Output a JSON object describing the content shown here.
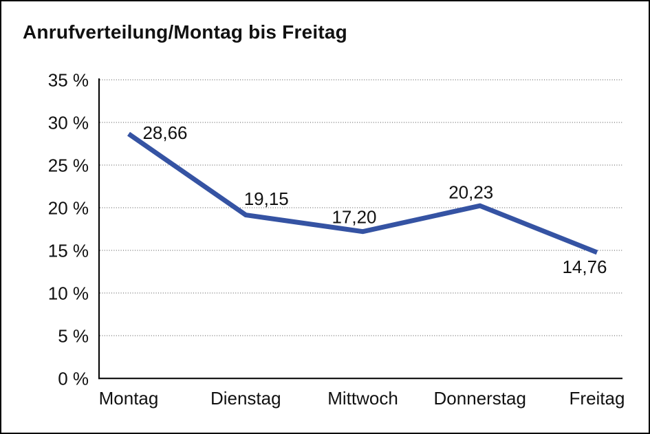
{
  "page": {
    "background_color": "#ffffff",
    "border_color": "#000000"
  },
  "chart_data": {
    "type": "line",
    "title": "Anrufverteilung/Montag bis Freitag",
    "categories": [
      "Montag",
      "Dienstag",
      "Mittwoch",
      "Donnerstag",
      "Freitag"
    ],
    "values": [
      28.66,
      19.15,
      17.2,
      20.23,
      14.76
    ],
    "value_labels": [
      "28,66",
      "19,15",
      "17,20",
      "20,23",
      "14,76"
    ],
    "unit": "%",
    "xlabel": "",
    "ylabel": "",
    "ylim": [
      0,
      35
    ],
    "ytick_step": 5,
    "ytick_labels": [
      "0 %",
      "5 %",
      "10 %",
      "15 %",
      "20 %",
      "25 %",
      "30 %",
      "35 %"
    ],
    "grid": "horizontal-dotted",
    "legend": "none",
    "line_color": "#3553a3",
    "axis_color": "#0a0a0a",
    "text_color": "#111111"
  }
}
